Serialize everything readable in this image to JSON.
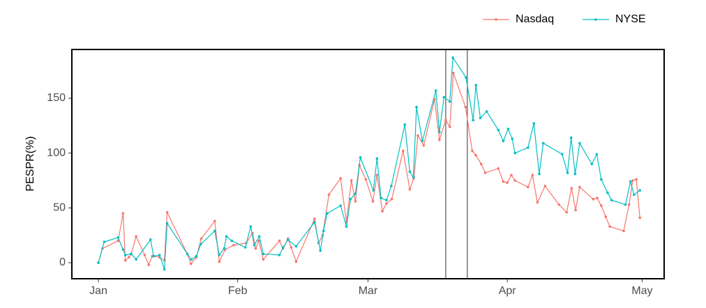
{
  "chart_data": {
    "type": "line",
    "y_label": "PESPR(%)",
    "xlim": [
      -5.9,
      125.9
    ],
    "xticks": [
      {
        "value": 0,
        "label": "Jan"
      },
      {
        "value": 31,
        "label": "Feb"
      },
      {
        "value": 60,
        "label": "Mar"
      },
      {
        "value": 91,
        "label": "Apr"
      },
      {
        "value": 121,
        "label": "May"
      }
    ],
    "ylim": [
      -14.6,
      194.5
    ],
    "yticks": [
      0,
      50,
      100,
      150
    ],
    "grid": false,
    "legend": "top-right",
    "vlines": [
      77.3,
      82.1
    ],
    "series": [
      {
        "name": "Nasdaq",
        "color": "#F8766D",
        "x": [
          0,
          0.9,
          4.4,
          5.5,
          6.0,
          6.8,
          7.3,
          8.4,
          10.3,
          11.2,
          12.0,
          13.6,
          14.7,
          15.3,
          19.8,
          20.6,
          21.8,
          22.9,
          25.9,
          26.9,
          28.2,
          30.1,
          32.9,
          34.3,
          35.0,
          35.7,
          36.7,
          40.3,
          41.1,
          42.2,
          42.9,
          44.0,
          48.1,
          49.0,
          49.9,
          51.3,
          53.9,
          55.2,
          56.3,
          57.2,
          58.1,
          59.5,
          61.1,
          62.0,
          63.2,
          64.1,
          65.3,
          67.8,
          69.3,
          70.2,
          71.1,
          72.4,
          74.8,
          75.9,
          77.3,
          78.2,
          79.0,
          81.7,
          83.2,
          84.0,
          85.2,
          86.1,
          89.0,
          90.1,
          91,
          91.9,
          92.7,
          95.6,
          96.6,
          97.7,
          99.4,
          102.5,
          104.2,
          105.3,
          106.2,
          107.1,
          110.1,
          111.0,
          111.9,
          112.9,
          113.8,
          116.9,
          118.1,
          118.9,
          119.7,
          120.5
        ],
        "values": [
          0,
          13,
          20,
          45,
          2,
          5,
          8,
          24,
          7,
          -2,
          6,
          5,
          2,
          46,
          8,
          -1,
          5,
          22,
          38,
          1,
          12,
          16,
          18,
          27,
          13,
          20,
          3,
          20,
          13,
          22,
          14,
          1,
          40,
          18,
          25,
          62,
          77,
          37,
          75,
          56,
          89,
          76,
          56,
          80,
          47,
          54,
          58,
          102,
          67,
          77,
          116,
          107,
          149,
          112,
          130,
          124,
          173,
          142,
          102,
          98,
          90,
          82,
          86,
          74,
          73,
          80,
          75,
          69,
          80,
          55,
          70,
          53,
          46,
          68,
          48,
          69,
          58,
          59,
          52,
          42,
          33,
          29,
          53,
          75,
          76,
          41
        ]
      },
      {
        "name": "NYSE",
        "color": "#00BFC4",
        "x": [
          0,
          1.3,
          4.4,
          5.5,
          6.0,
          7.3,
          8.4,
          11.6,
          12.3,
          13.6,
          14.7,
          15.3,
          19.8,
          20.7,
          21.8,
          22.8,
          25.9,
          26.9,
          28.0,
          28.5,
          29.7,
          32.7,
          33.9,
          34.7,
          35.8,
          36.7,
          40.3,
          41.1,
          42.2,
          44.0,
          48.1,
          49.4,
          50.1,
          50.9,
          53.9,
          55.2,
          56.1,
          57.2,
          58.3,
          61.2,
          62.0,
          62.9,
          64.1,
          65.2,
          68.2,
          69.3,
          70.1,
          70.8,
          72.1,
          75.1,
          75.9,
          76.9,
          78.2,
          78.9,
          81.8,
          83.4,
          84.0,
          85.0,
          86.4,
          89.0,
          90.1,
          91.2,
          92.1,
          92.7,
          95.6,
          96.9,
          98.1,
          99.0,
          103.2,
          104.4,
          105.2,
          106.1,
          107.1,
          109.8,
          110.9,
          111.9,
          113.3,
          114.2,
          117.3,
          118.4,
          119.2,
          120.5
        ],
        "values": [
          0,
          19,
          23,
          12,
          7,
          8,
          3,
          21,
          6,
          7,
          -6,
          36,
          8,
          3,
          6,
          17,
          29,
          7,
          13,
          24,
          20,
          14,
          33,
          16,
          24,
          8,
          7,
          14,
          21,
          15,
          37,
          11,
          29,
          45,
          52,
          33,
          58,
          63,
          96,
          66,
          95,
          59,
          57,
          70,
          126,
          83,
          78,
          142,
          111,
          157,
          119,
          151,
          147,
          187,
          169,
          130,
          162,
          132,
          138,
          121,
          111,
          122,
          113,
          100,
          105,
          127,
          81,
          109,
          99,
          82,
          114,
          81,
          109,
          90,
          99,
          76,
          64,
          57,
          53,
          74,
          62,
          66
        ]
      }
    ]
  }
}
